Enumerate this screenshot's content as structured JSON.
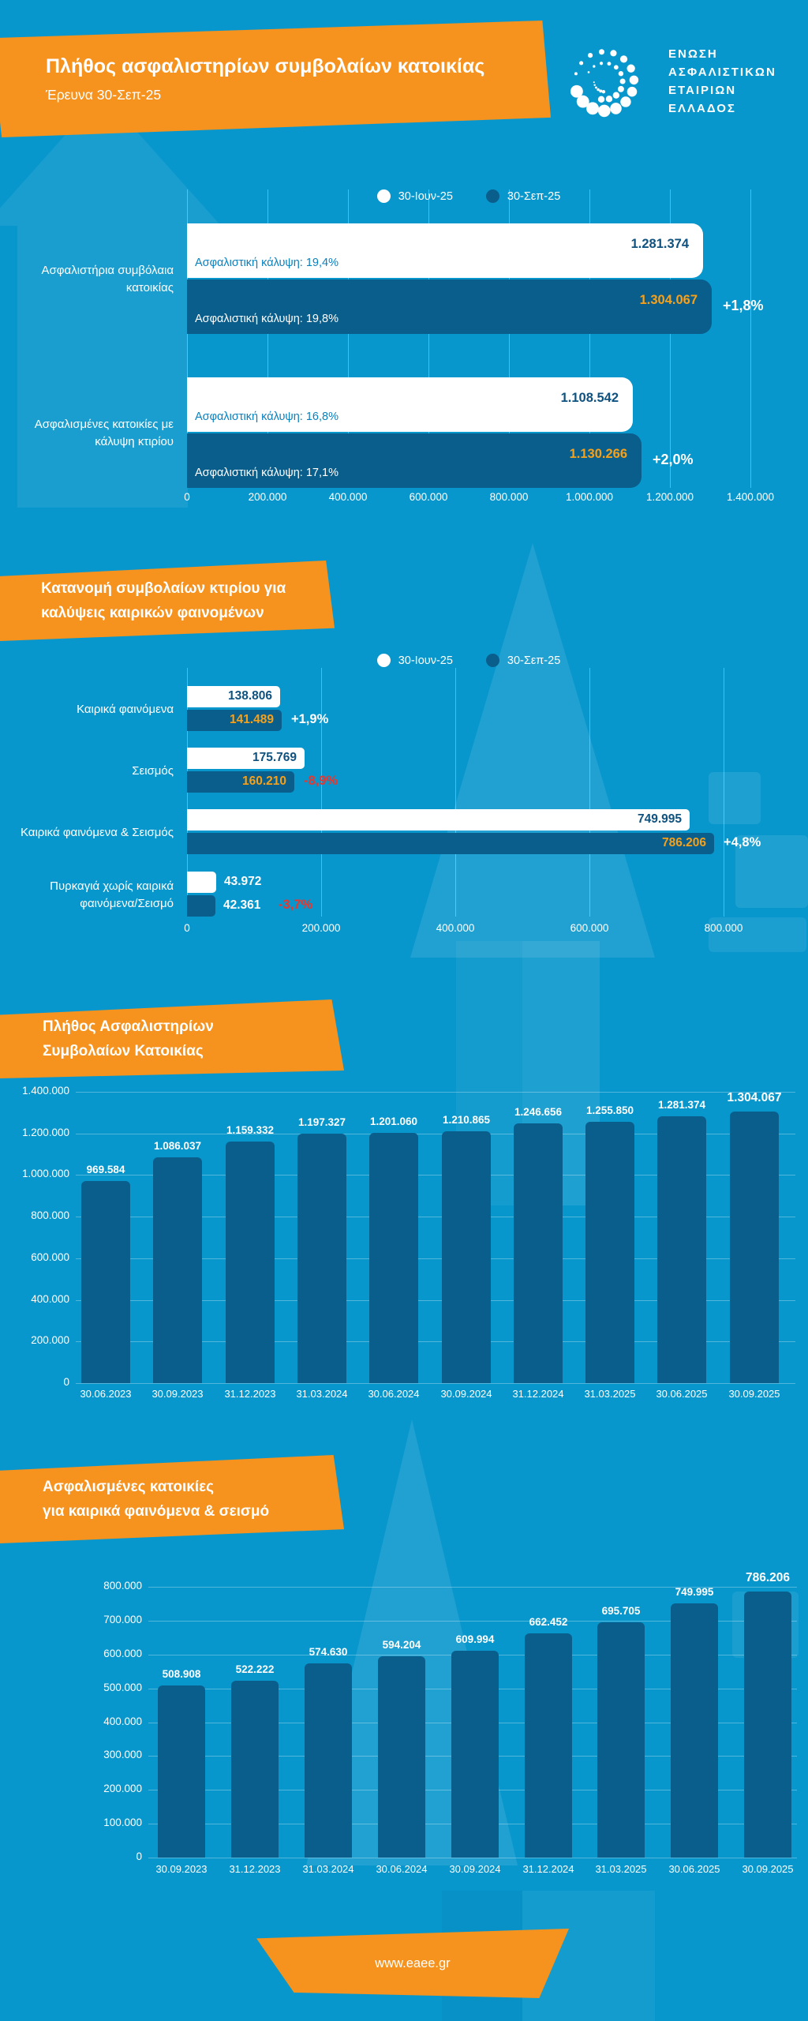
{
  "header": {
    "title": "Πλήθος ασφαλιστηρίων συμβολαίων κατοικίας",
    "subtitle": "Έρευνα 30-Σεπ-25",
    "logo_lines": [
      "ΕΝΩΣΗ",
      "ΑΣΦΑΛΙΣΤΙΚΩΝ",
      "ΕΤΑΙΡΙΩΝ",
      "ΕΛΛΑΔΟΣ"
    ]
  },
  "footer": {
    "url": "www.eaee.gr"
  },
  "colors": {
    "background": "#0897cc",
    "bar_dark": "#0a5e8c",
    "bar_light": "#ffffff",
    "accent_orange": "#f6921e",
    "value_navy": "#0f5280",
    "note_blue": "#0a81bf",
    "value_orange": "#f7a11a",
    "delta_red": "#e8352e",
    "text_white": "#ffffff"
  },
  "chart_data": [
    {
      "id": "policies-vs-previous-quarter",
      "type": "bar",
      "orientation": "horizontal",
      "legend": [
        "30-Ιουν-25",
        "30-Σεπ-25"
      ],
      "xticks": [
        "0",
        "200.000",
        "400.000",
        "600.000",
        "800.000",
        "1.000.000",
        "1.200.000",
        "1.400.000"
      ],
      "xlim": [
        0,
        1400000
      ],
      "rows": [
        {
          "category": "Ασφαλιστήρια συμβόλαια κατοικίας",
          "jun_value": 1281374,
          "jun_label": "1.281.374",
          "jun_note": "Ασφαλιστική κάλυψη: 19,4%",
          "sep_value": 1304067,
          "sep_label": "1.304.067",
          "sep_note": "Ασφαλιστική κάλυψη: 19,8%",
          "delta": "+1,8%",
          "delta_negative": false
        },
        {
          "category": "Ασφαλισμένες κατοικίες με κάλυψη κτιρίου",
          "jun_value": 1108542,
          "jun_label": "1.108.542",
          "jun_note": "Ασφαλιστική κάλυψη: 16,8%",
          "sep_value": 1130266,
          "sep_label": "1.130.266",
          "sep_note": "Ασφαλιστική κάλυψη: 17,1%",
          "delta": "+2,0%",
          "delta_negative": false
        }
      ]
    },
    {
      "id": "building-coverage-distribution",
      "type": "bar",
      "orientation": "horizontal",
      "title": "Κατανομή συμβολαίων κτιρίου για καλύψεις καιρικών φαινομένων",
      "title_lines": [
        "Κατανομή συμβολαίων κτιρίου για",
        "καλύψεις καιρικών φαινομένων"
      ],
      "legend": [
        "30-Ιουν-25",
        "30-Σεπ-25"
      ],
      "xticks": [
        "0",
        "200.000",
        "400.000",
        "600.000",
        "800.000"
      ],
      "xlim": [
        0,
        800000
      ],
      "rows": [
        {
          "category": "Καιρικά φαινόμενα",
          "jun_value": 138806,
          "jun_label": "138.806",
          "sep_value": 141489,
          "sep_label": "141.489",
          "delta": "+1,9%",
          "delta_negative": false,
          "values_outside": false
        },
        {
          "category": "Σεισμός",
          "jun_value": 175769,
          "jun_label": "175.769",
          "sep_value": 160210,
          "sep_label": "160.210",
          "delta": "-8,9%",
          "delta_negative": true,
          "values_outside": false
        },
        {
          "category": "Καιρικά φαινόμενα & Σεισμός",
          "jun_value": 749995,
          "jun_label": "749.995",
          "sep_value": 786206,
          "sep_label": "786.206",
          "delta": "+4,8%",
          "delta_negative": false,
          "values_outside": false
        },
        {
          "category": "Πυρκαγιά χωρίς καιρικά φαινόμενα/Σεισμό",
          "jun_value": 43972,
          "jun_label": "43.972",
          "sep_value": 42361,
          "sep_label": "42.361",
          "delta": "-3,7%",
          "delta_negative": true,
          "values_outside": true
        }
      ]
    },
    {
      "id": "policies-timeline",
      "type": "bar",
      "title": "Πλήθος Ασφαλιστηρίων Συμβολαίων Κατοικίας",
      "title_lines": [
        "Πλήθος Ασφαλιστηρίων",
        "Συμβολαίων Κατοικίας"
      ],
      "categories": [
        "30.06.2023",
        "30.09.2023",
        "31.12.2023",
        "31.03.2024",
        "30.06.2024",
        "30.09.2024",
        "31.12.2024",
        "31.03.2025",
        "30.06.2025",
        "30.09.2025"
      ],
      "values": [
        969584,
        1086037,
        1159332,
        1197327,
        1201060,
        1210865,
        1246656,
        1255850,
        1281374,
        1304067
      ],
      "value_labels": [
        "969.584",
        "1.086.037",
        "1.159.332",
        "1.197.327",
        "1.201.060",
        "1.210.865",
        "1.246.656",
        "1.255.850",
        "1.281.374",
        "1.304.067"
      ],
      "yticks": [
        "0",
        "200.000",
        "400.000",
        "600.000",
        "800.000",
        "1.000.000",
        "1.200.000",
        "1.400.000"
      ],
      "ylim": [
        0,
        1400000
      ]
    },
    {
      "id": "weather-earthquake-timeline",
      "type": "bar",
      "title": "Ασφαλισμένες κατοικίες για καιρικά φαινόμενα & σεισμό",
      "title_lines": [
        "Ασφαλισμένες κατοικίες",
        "για καιρικά φαινόμενα & σεισμό"
      ],
      "categories": [
        "30.09.2023",
        "31.12.2023",
        "31.03.2024",
        "30.06.2024",
        "30.09.2024",
        "31.12.2024",
        "31.03.2025",
        "30.06.2025",
        "30.09.2025"
      ],
      "values": [
        508908,
        522222,
        574630,
        594204,
        609994,
        662452,
        695705,
        749995,
        786206
      ],
      "value_labels": [
        "508.908",
        "522.222",
        "574.630",
        "594.204",
        "609.994",
        "662.452",
        "695.705",
        "749.995",
        "786.206"
      ],
      "yticks": [
        "0",
        "100.000",
        "200.000",
        "300.000",
        "400.000",
        "500.000",
        "600.000",
        "700.000",
        "800.000"
      ],
      "ylim": [
        0,
        800000
      ]
    }
  ]
}
